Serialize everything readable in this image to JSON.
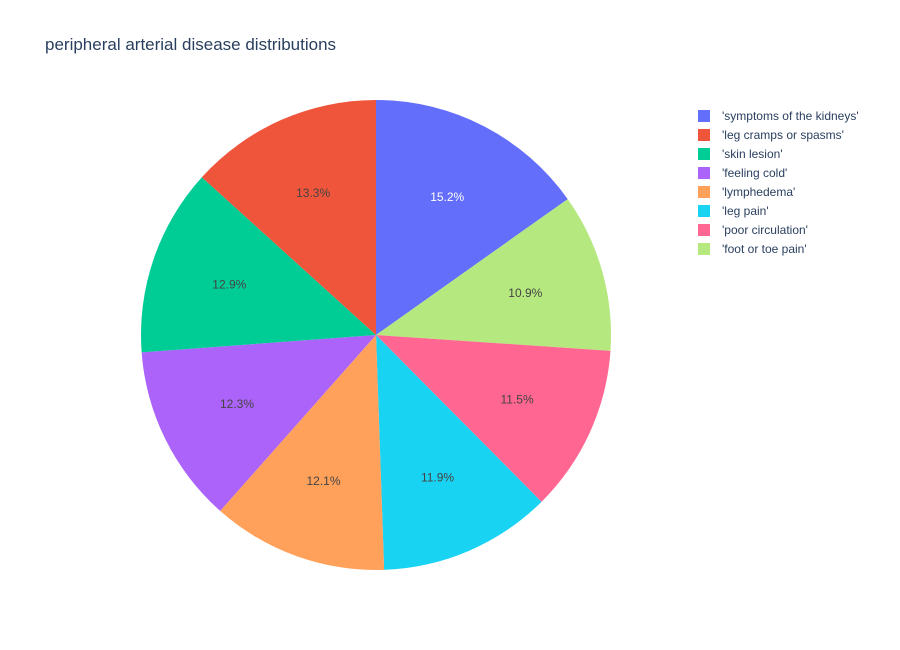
{
  "chart_data": {
    "type": "pie",
    "title": "peripheral arterial disease distributions",
    "labels": [
      "'symptoms of the kidneys'",
      "'leg cramps or spasms'",
      "'skin lesion'",
      "'feeling cold'",
      "'lymphedema'",
      "'leg pain'",
      "'poor circulation'",
      "'foot or toe pain'"
    ],
    "slice_order": [
      "'symptoms of the kidneys'",
      "'foot or toe pain'",
      "'poor circulation'",
      "'leg pain'",
      "'lymphedema'",
      "'feeling cold'",
      "'skin lesion'",
      "'leg cramps or spasms'"
    ],
    "values": [
      15.2,
      13.3,
      12.9,
      12.3,
      12.1,
      11.9,
      11.5,
      10.9
    ],
    "value_labels": [
      "15.2%",
      "13.3%",
      "12.9%",
      "12.3%",
      "12.1%",
      "11.9%",
      "11.5%",
      "10.9%"
    ],
    "colors": [
      "#636efa",
      "#EF553B",
      "#00cc96",
      "#ab63fa",
      "#FFA15A",
      "#19d3f3",
      "#FF6692",
      "#B6E880"
    ],
    "label_colors": [
      "#ffffff",
      "#444444",
      "#444444",
      "#444444",
      "#444444",
      "#444444",
      "#444444",
      "#444444"
    ],
    "direction": "clockwise",
    "start": "top",
    "legend_placement": "top-right"
  }
}
